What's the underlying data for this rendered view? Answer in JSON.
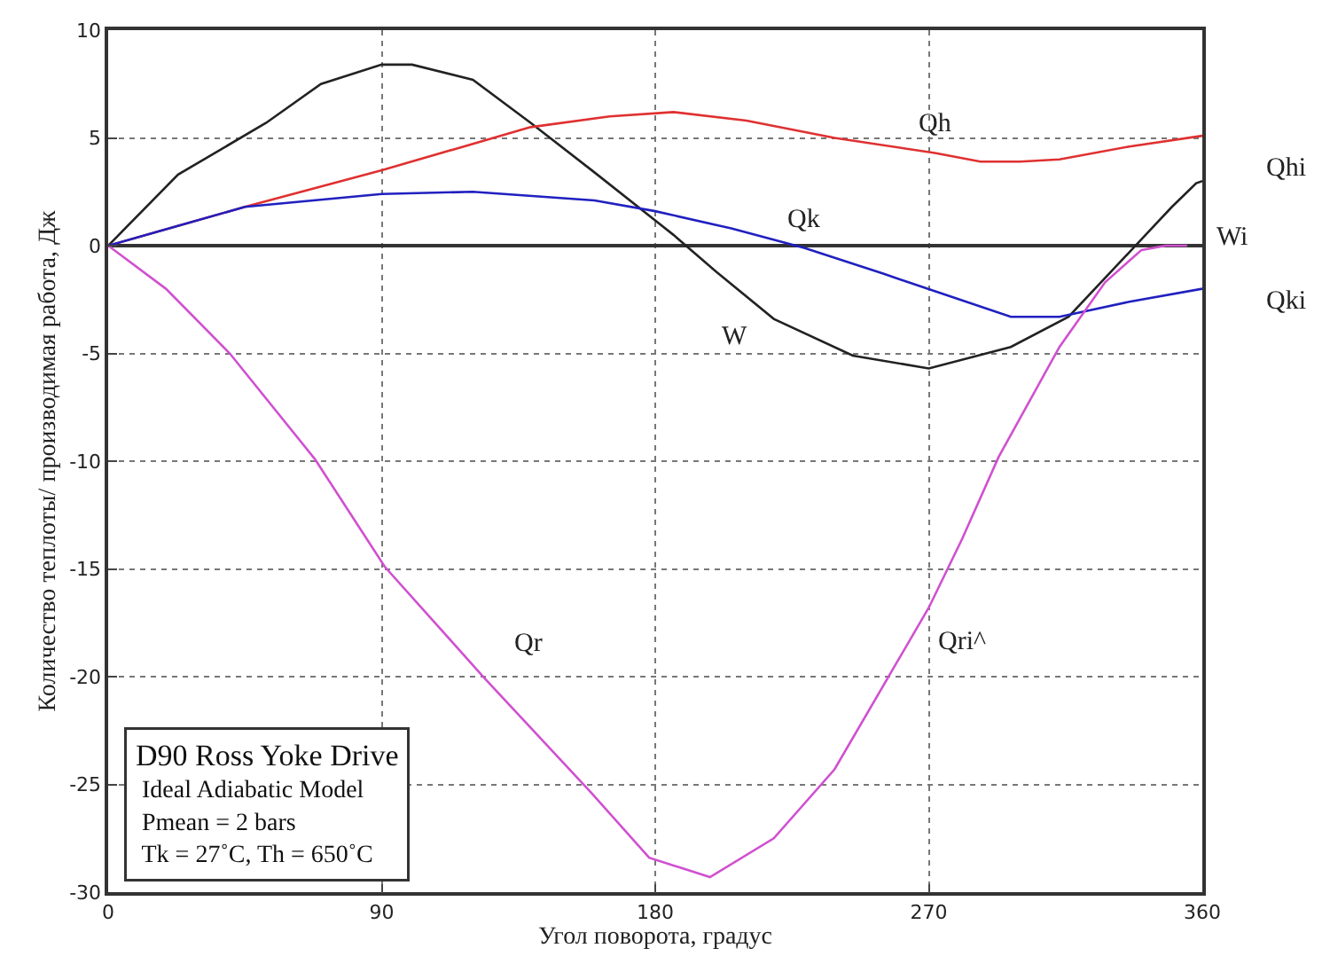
{
  "chart_data": {
    "type": "line",
    "xlabel": "Угол поворота, градус",
    "ylabel": "Количество теплоты/ производимая работа, Дж",
    "xlim": [
      0,
      360
    ],
    "xticks": [
      0,
      90,
      180,
      270,
      360
    ],
    "ylim": [
      -30,
      10
    ],
    "yticks": [
      -30,
      -25,
      -20,
      -15,
      -10,
      -5,
      0,
      5,
      10
    ],
    "grid": true,
    "legend": false,
    "marker": "none",
    "line_style": "solid",
    "series": [
      {
        "name": "W",
        "color": "#222222",
        "x": [
          0,
          23,
          52,
          70,
          90,
          100,
          120,
          139,
          160,
          186,
          200,
          219,
          245,
          270,
          297,
          316,
          336,
          350,
          358,
          360
        ],
        "values": [
          0,
          3.3,
          5.7,
          7.5,
          8.4,
          8.4,
          7.7,
          5.7,
          3.4,
          0.5,
          -1.2,
          -3.4,
          -5.1,
          -5.7,
          -4.7,
          -3.3,
          -0.3,
          1.8,
          2.9,
          3
        ]
      },
      {
        "name": "Qh",
        "color": "#e03030",
        "x": [
          0,
          45,
          90,
          139,
          165,
          186,
          210,
          239,
          272,
          287,
          300,
          313,
          336,
          360
        ],
        "values": [
          0,
          1.8,
          3.5,
          5.5,
          6.0,
          6.2,
          5.8,
          5.0,
          4.3,
          3.9,
          3.9,
          4.0,
          4.6,
          5.1
        ]
      },
      {
        "name": "Qk",
        "color": "#2020c0",
        "x": [
          0,
          45,
          90,
          120,
          160,
          180,
          205,
          229,
          255,
          278,
          297,
          313,
          336,
          360
        ],
        "values": [
          0,
          1.8,
          2.4,
          2.5,
          2.1,
          1.6,
          0.8,
          -0.1,
          -1.3,
          -2.4,
          -3.3,
          -3.3,
          -2.6,
          -2.0
        ]
      },
      {
        "name": "Qr",
        "color": "#d050d0",
        "x": [
          0,
          19,
          40,
          68,
          91,
          124,
          159,
          178,
          198,
          219,
          239,
          258,
          270,
          281,
          293,
          313,
          328,
          340,
          348,
          355
        ],
        "values": [
          0,
          -2.0,
          -5.0,
          -9.9,
          -14.9,
          -20.1,
          -25.4,
          -28.4,
          -29.3,
          -27.5,
          -24.3,
          -19.7,
          -16.8,
          -13.6,
          -9.8,
          -4.7,
          -1.7,
          -0.2,
          0,
          0
        ]
      }
    ],
    "annotations": [
      "Qri^",
      "Wi",
      "Qhi",
      "Qki",
      "D90 Ross Yoke Drive",
      "Ideal Adiabatic Model",
      "Pmean = 2 bars",
      "Tk = 27˚C, Th = 650˚C"
    ]
  }
}
